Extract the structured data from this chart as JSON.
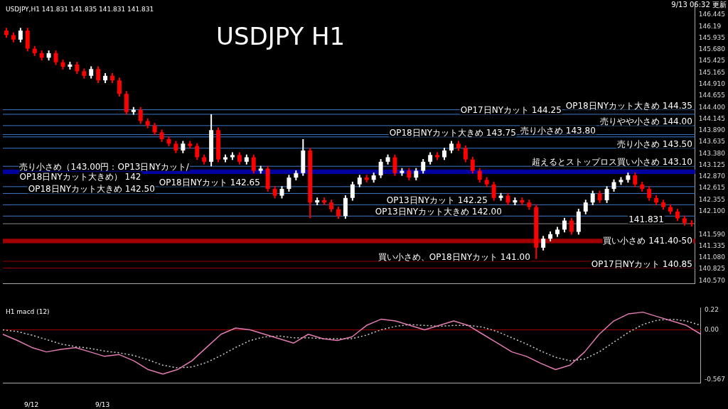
{
  "chart_data": [
    {
      "type": "candlestick",
      "title": "USDJPY H1",
      "subtitle": "USDJPY,H1 141.831 141.835 141.831 141.831",
      "annotations": [
        "9/13 06:32 更新"
      ],
      "categories": [
        null,
        null,
        null,
        null,
        null,
        null,
        null,
        null,
        null,
        null,
        null,
        null,
        null,
        null,
        null,
        null,
        null,
        null,
        null,
        null,
        null,
        null,
        null,
        null,
        null,
        null,
        null,
        null,
        null,
        null,
        null,
        null,
        null,
        null,
        null,
        null,
        null,
        null,
        null,
        null,
        null,
        null,
        null,
        null,
        null,
        null,
        null,
        null,
        null,
        null,
        null,
        null,
        null,
        null,
        null,
        null,
        null,
        null,
        null,
        null,
        null,
        null,
        null,
        null,
        null,
        null,
        null,
        null,
        null,
        null,
        null,
        null,
        null,
        null,
        null,
        null,
        null,
        null,
        null,
        null,
        null,
        null,
        null,
        null,
        null,
        null,
        null,
        null,
        null,
        null,
        null,
        null,
        null,
        null,
        null,
        null,
        null,
        null
      ],
      "ohlc": [
        [
          146.1,
          146.16,
          145.94,
          146.0
        ],
        [
          146.0,
          146.06,
          145.84,
          145.9
        ],
        [
          145.9,
          146.16,
          145.84,
          146.1
        ],
        [
          146.1,
          146.16,
          145.64,
          145.7
        ],
        [
          145.7,
          145.76,
          145.54,
          145.6
        ],
        [
          145.6,
          145.66,
          145.44,
          145.5
        ],
        [
          145.5,
          145.66,
          145.44,
          145.6
        ],
        [
          145.6,
          145.66,
          145.34,
          145.4
        ],
        [
          145.4,
          145.46,
          145.24,
          145.3
        ],
        [
          145.3,
          145.41,
          145.24,
          145.35
        ],
        [
          145.35,
          145.41,
          145.14,
          145.2
        ],
        [
          145.2,
          145.26,
          145.04,
          145.1
        ],
        [
          145.1,
          145.31,
          145.04,
          145.25
        ],
        [
          145.25,
          145.31,
          144.94,
          145.0
        ],
        [
          145.0,
          145.16,
          144.94,
          145.1
        ],
        [
          145.1,
          145.16,
          144.94,
          145.0
        ],
        [
          145.0,
          145.06,
          144.64,
          144.7
        ],
        [
          144.7,
          144.76,
          144.24,
          144.3
        ],
        [
          144.3,
          144.41,
          144.24,
          144.35
        ],
        [
          144.35,
          144.41,
          144.04,
          144.1
        ],
        [
          144.1,
          144.16,
          143.94,
          144.0
        ],
        [
          144.0,
          144.06,
          143.79,
          143.85
        ],
        [
          143.85,
          143.91,
          143.64,
          143.7
        ],
        [
          143.7,
          143.76,
          143.54,
          143.6
        ],
        [
          143.6,
          143.66,
          143.39,
          143.45
        ],
        [
          143.45,
          143.66,
          143.39,
          143.6
        ],
        [
          143.6,
          143.66,
          143.49,
          143.55
        ],
        [
          143.55,
          143.61,
          143.24,
          143.3
        ],
        [
          143.3,
          143.36,
          143.14,
          143.2
        ],
        [
          143.2,
          144.25,
          143.1,
          143.9
        ],
        [
          143.9,
          143.96,
          143.19,
          143.25
        ],
        [
          143.25,
          143.36,
          143.19,
          143.3
        ],
        [
          143.3,
          143.41,
          143.24,
          143.35
        ],
        [
          143.35,
          143.41,
          143.14,
          143.2
        ],
        [
          143.2,
          143.36,
          143.14,
          143.3
        ],
        [
          143.3,
          143.36,
          142.94,
          143.0
        ],
        [
          143.0,
          143.11,
          142.94,
          143.05
        ],
        [
          143.05,
          143.11,
          142.54,
          142.6
        ],
        [
          142.6,
          142.66,
          142.39,
          142.45
        ],
        [
          142.45,
          142.66,
          142.39,
          142.6
        ],
        [
          142.6,
          142.91,
          142.54,
          142.85
        ],
        [
          142.85,
          143.01,
          142.79,
          142.95
        ],
        [
          142.95,
          143.7,
          142.89,
          143.45
        ],
        [
          143.45,
          143.51,
          141.95,
          142.3
        ],
        [
          142.3,
          142.41,
          142.24,
          142.35
        ],
        [
          142.35,
          142.41,
          142.24,
          142.3
        ],
        [
          142.3,
          142.36,
          142.09,
          142.15
        ],
        [
          142.15,
          142.21,
          141.94,
          142.0
        ],
        [
          142.0,
          142.46,
          141.94,
          142.4
        ],
        [
          142.4,
          142.76,
          142.34,
          142.7
        ],
        [
          142.7,
          142.91,
          142.64,
          142.85
        ],
        [
          142.85,
          142.91,
          142.74,
          142.8
        ],
        [
          142.8,
          142.96,
          142.74,
          142.9
        ],
        [
          142.9,
          143.26,
          142.84,
          143.2
        ],
        [
          143.2,
          143.36,
          143.14,
          143.3
        ],
        [
          143.3,
          143.36,
          142.89,
          142.95
        ],
        [
          142.95,
          143.06,
          142.89,
          143.0
        ],
        [
          143.0,
          143.06,
          142.79,
          142.85
        ],
        [
          142.85,
          143.06,
          142.79,
          143.0
        ],
        [
          143.0,
          143.26,
          142.94,
          143.2
        ],
        [
          143.2,
          143.41,
          143.14,
          143.35
        ],
        [
          143.35,
          143.41,
          143.24,
          143.3
        ],
        [
          143.3,
          143.51,
          143.24,
          143.45
        ],
        [
          143.45,
          143.66,
          143.39,
          143.6
        ],
        [
          143.6,
          143.66,
          143.44,
          143.5
        ],
        [
          143.5,
          143.56,
          143.19,
          143.25
        ],
        [
          143.25,
          143.31,
          142.94,
          143.0
        ],
        [
          143.0,
          143.06,
          142.74,
          142.8
        ],
        [
          142.8,
          142.86,
          142.64,
          142.7
        ],
        [
          142.7,
          142.76,
          142.34,
          142.4
        ],
        [
          142.4,
          142.51,
          142.34,
          142.45
        ],
        [
          142.45,
          142.51,
          142.24,
          142.3
        ],
        [
          142.3,
          142.41,
          142.24,
          142.35
        ],
        [
          142.35,
          142.41,
          142.24,
          142.3
        ],
        [
          142.3,
          142.36,
          142.14,
          142.2
        ],
        [
          142.2,
          142.26,
          141.05,
          141.3
        ],
        [
          141.3,
          141.56,
          141.24,
          141.5
        ],
        [
          141.5,
          141.66,
          141.44,
          141.6
        ],
        [
          141.6,
          141.76,
          141.54,
          141.7
        ],
        [
          141.7,
          141.96,
          141.64,
          141.9
        ],
        [
          141.9,
          141.96,
          141.59,
          141.65
        ],
        [
          141.65,
          142.16,
          141.59,
          142.1
        ],
        [
          142.1,
          142.36,
          142.04,
          142.3
        ],
        [
          142.3,
          142.56,
          142.24,
          142.5
        ],
        [
          142.5,
          142.56,
          142.29,
          142.35
        ],
        [
          142.35,
          142.66,
          142.29,
          142.6
        ],
        [
          142.6,
          142.81,
          142.54,
          142.75
        ],
        [
          142.75,
          142.86,
          142.69,
          142.8
        ],
        [
          142.8,
          142.96,
          142.74,
          142.9
        ],
        [
          142.9,
          142.96,
          142.64,
          142.7
        ],
        [
          142.7,
          142.76,
          142.54,
          142.6
        ],
        [
          142.6,
          142.66,
          142.34,
          142.4
        ],
        [
          142.4,
          142.46,
          142.24,
          142.3
        ],
        [
          142.3,
          142.36,
          142.14,
          142.2
        ],
        [
          142.2,
          142.26,
          142.04,
          142.1
        ],
        [
          142.1,
          142.16,
          141.89,
          141.95
        ],
        [
          141.95,
          142.01,
          141.79,
          141.85
        ],
        [
          141.85,
          141.91,
          141.77,
          141.83
        ]
      ],
      "colors": [
        "#ff0000",
        "#ff0000",
        "#ffffff",
        "#ff0000",
        "#ff0000",
        "#ff0000",
        "#ffffff",
        "#ff0000",
        "#ff0000",
        "#ffffff",
        "#ff0000",
        "#ff0000",
        "#ffffff",
        "#ff0000",
        "#ffffff",
        "#ff0000",
        "#ff0000",
        "#ff0000",
        "#ffffff",
        "#ff0000",
        "#ff0000",
        "#ff0000",
        "#ff0000",
        "#ff0000",
        "#ff0000",
        "#ffffff",
        "#ff0000",
        "#ff0000",
        "#ff0000",
        "#ffffff",
        "#ff0000",
        "#ffffff",
        "#ffffff",
        "#ff0000",
        "#ffffff",
        "#ff0000",
        "#ffffff",
        "#ff0000",
        "#ff0000",
        "#ffffff",
        "#ffffff",
        "#ffffff",
        "#ffffff",
        "#ff0000",
        "#ffffff",
        "#ff0000",
        "#ff0000",
        "#ff0000",
        "#ffffff",
        "#ffffff",
        "#ffffff",
        "#ff0000",
        "#ffffff",
        "#ffffff",
        "#ffffff",
        "#ff0000",
        "#ffffff",
        "#ff0000",
        "#ffffff",
        "#ffffff",
        "#ffffff",
        "#ff0000",
        "#ffffff",
        "#ffffff",
        "#ff0000",
        "#ff0000",
        "#ff0000",
        "#ff0000",
        "#ff0000",
        "#ff0000",
        "#ffffff",
        "#ff0000",
        "#ffffff",
        "#ff0000",
        "#ff0000",
        "#ff0000",
        "#ffffff",
        "#ffffff",
        "#ffffff",
        "#ffffff",
        "#ff0000",
        "#ffffff",
        "#ffffff",
        "#ffffff",
        "#ff0000",
        "#ffffff",
        "#ffffff",
        "#ffffff",
        "#ffffff",
        "#ff0000",
        "#ff0000",
        "#ff0000",
        "#ff0000",
        "#ff0000",
        "#ff0000",
        "#ff0000",
        "#ff0000",
        "#ff0000"
      ],
      "ylim": [
        140.51,
        146.66
      ],
      "yticks": [
        146.445,
        146.19,
        {
          "value": 145.935,
          "label": "145.935"
        },
        {
          "value": 145.68,
          "label": "145.680"
        },
        145.425,
        145.165,
        {
          "value": 144.91,
          "label": "144.910"
        },
        144.655,
        {
          "value": 144.4,
          "label": "144.400"
        },
        144.145,
        {
          "value": 143.89,
          "label": "143.890"
        },
        143.635,
        {
          "value": 143.38,
          "label": "143.380"
        },
        143.125,
        {
          "value": 142.87,
          "label": "142.870"
        },
        142.615,
        142.355,
        {
          "value": 142.1,
          "label": "142.100"
        },
        {
          "value": 141.59,
          "label": "141.590"
        },
        141.335,
        {
          "value": 141.08,
          "label": "141.080"
        },
        140.825,
        {
          "value": 140.57,
          "label": "140.570"
        }
      ],
      "ref_lines": [
        {
          "axis": "y",
          "value": 144.35,
          "label": "OP18日NYカット大きめ 144.35",
          "color": "#3a78c8"
        },
        {
          "axis": "y",
          "value": 144.25,
          "label": "OP17日NYカット 144.25",
          "color": "#3a78c8"
        },
        {
          "axis": "y",
          "value": 144.0,
          "label": "売りやや小さめ 144.00",
          "color": "#3a78c8"
        },
        {
          "axis": "y",
          "value": 143.8,
          "label": "売り小さめ 143.80",
          "color": "#3a78c8"
        },
        {
          "axis": "y",
          "value": 143.75,
          "label": "OP18日NYカット大きめ 143.75",
          "color": "#3a78c8"
        },
        {
          "axis": "y",
          "value": 143.5,
          "label": "売り小さめ 143.50",
          "color": "#3a78c8"
        },
        {
          "axis": "y",
          "value": 143.1,
          "label": "超えるとストップロス買い小さめ 143.10",
          "color": "#3a78c8"
        },
        {
          "axis": "y",
          "value": 142.65,
          "label": "OP18日NYカット 142.65",
          "color": "#3a78c8"
        },
        {
          "axis": "y",
          "value": 142.5,
          "label": "OP18日NYカット大きめ 142.50",
          "color": "#3a78c8"
        },
        {
          "axis": "y",
          "value": 142.25,
          "label": "OP13日NYカット 142.25",
          "color": "#3a78c8"
        },
        {
          "axis": "y",
          "value": 142.0,
          "label": "OP13日NYカット大きめ 142.00",
          "color": "#3a78c8"
        },
        {
          "axis": "y",
          "value": 141.831,
          "label": "141.831",
          "color": "#888888"
        },
        {
          "axis": "y",
          "value": 141.0,
          "label": "買い小さめ、OP18日NYカット 141.00",
          "color": "#a00000"
        },
        {
          "axis": "y",
          "value": 140.85,
          "label": "OP17日NYカット 140.85",
          "color": "#a00000"
        }
      ],
      "bands": [
        {
          "axis": "y",
          "from": 142.93,
          "to": 143.03,
          "label": "売り小さめ（143.00円：OP13日NYカット/OP18日NYカット大きめ） 142",
          "color": "#0000a0"
        },
        {
          "axis": "y",
          "from": 141.4,
          "to": 141.5,
          "label": "買い小さめ 141.40-50",
          "color": "#a00000"
        }
      ],
      "grid": false,
      "legend": false
    },
    {
      "type": "line",
      "title": "H1 macd (12)",
      "annotations": [
        "9/12",
        "9/13"
      ],
      "categories": [
        null,
        null,
        null,
        null,
        null,
        null,
        null,
        null,
        null,
        null,
        null,
        null,
        null,
        null,
        null,
        null,
        null,
        null,
        null,
        null,
        null,
        null,
        null,
        null,
        null,
        null,
        null,
        null,
        null,
        null,
        null,
        null,
        null,
        null,
        null,
        null,
        null,
        null,
        null,
        null,
        null,
        null,
        null,
        null,
        null,
        null,
        null,
        null,
        null
      ],
      "series": [
        {
          "color": "#e07ab0",
          "line_style": "solid",
          "values": [
            -0.05,
            -0.12,
            -0.2,
            -0.25,
            -0.22,
            -0.2,
            -0.25,
            -0.3,
            -0.28,
            -0.35,
            -0.45,
            -0.5,
            -0.45,
            -0.35,
            -0.2,
            -0.05,
            0.02,
            0.0,
            -0.05,
            -0.1,
            -0.15,
            -0.05,
            -0.1,
            -0.12,
            -0.08,
            0.05,
            0.12,
            0.1,
            0.05,
            0.0,
            0.05,
            0.1,
            0.05,
            -0.05,
            -0.15,
            -0.25,
            -0.3,
            -0.38,
            -0.45,
            -0.4,
            -0.25,
            -0.05,
            0.1,
            0.18,
            0.2,
            0.15,
            0.1,
            0.05,
            -0.05
          ]
        },
        {
          "color": "#cccccc",
          "line_style": "dotted",
          "values": [
            0.0,
            -0.02,
            -0.06,
            -0.11,
            -0.16,
            -0.19,
            -0.21,
            -0.24,
            -0.26,
            -0.29,
            -0.34,
            -0.4,
            -0.43,
            -0.42,
            -0.37,
            -0.29,
            -0.2,
            -0.12,
            -0.08,
            -0.07,
            -0.09,
            -0.09,
            -0.1,
            -0.1,
            -0.1,
            -0.06,
            0.0,
            0.04,
            0.06,
            0.05,
            0.04,
            0.05,
            0.05,
            0.03,
            -0.02,
            -0.09,
            -0.16,
            -0.24,
            -0.31,
            -0.35,
            -0.33,
            -0.25,
            -0.14,
            -0.03,
            0.06,
            0.11,
            0.12,
            0.1,
            0.05
          ]
        }
      ],
      "ylim": [
        -0.6,
        0.25
      ],
      "yticks": [
        0.22,
        {
          "value": 0,
          "label": "0.00"
        },
        -0.567
      ],
      "ref_lines": [
        {
          "axis": "y",
          "value": 0,
          "color": "#a00000"
        }
      ],
      "marker": "none",
      "grid": false,
      "legend": false
    }
  ]
}
